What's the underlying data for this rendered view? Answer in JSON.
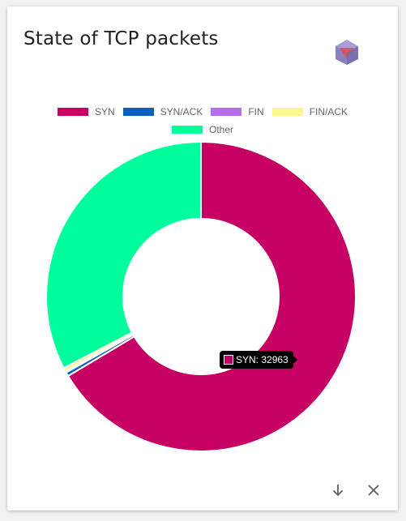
{
  "card": {
    "title": "State of TCP packets"
  },
  "icons": {
    "logo": "cube-logo-icon",
    "download": "arrow-down-icon",
    "close": "close-icon"
  },
  "chart_data": {
    "type": "pie",
    "variant": "doughnut",
    "title": "State of TCP packets",
    "categories": [
      "SYN",
      "SYN/ACK",
      "FIN",
      "FIN/ACK",
      "Other"
    ],
    "values": [
      32963,
      200,
      80,
      180,
      16200
    ],
    "colors": [
      "#c70063",
      "#0a5fc4",
      "#b56ef2",
      "#fff78c",
      "#00ff9c"
    ],
    "legend_position": "top",
    "tooltip": {
      "label": "SYN",
      "value": 32963,
      "text": "SYN: 32963"
    }
  }
}
